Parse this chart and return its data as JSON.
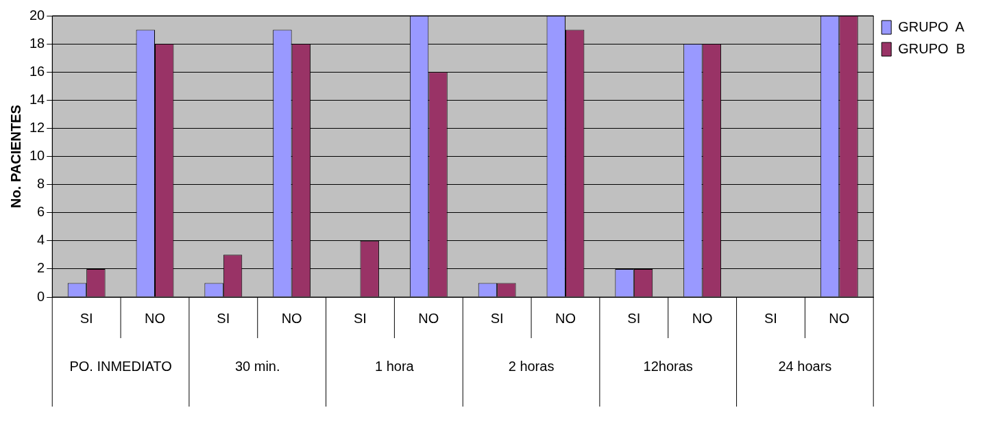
{
  "chart_data": {
    "type": "bar",
    "ylabel": "No. PACIENTES",
    "categories": [
      "SI",
      "NO",
      "SI",
      "NO",
      "SI",
      "NO",
      "SI",
      "NO",
      "SI",
      "NO",
      "SI",
      "NO"
    ],
    "series": [
      {
        "name": "GRUPO  A",
        "color": "#9999ff",
        "values": [
          1,
          19,
          1,
          19,
          0,
          20,
          1,
          20,
          2,
          18,
          0,
          20
        ]
      },
      {
        "name": "GRUPO  B",
        "color": "#993366",
        "values": [
          2,
          18,
          3,
          18,
          4,
          16,
          1,
          19,
          2,
          18,
          0,
          20
        ]
      }
    ],
    "annotations": [
      "PO. INMEDIATO",
      "30 min.",
      "1 hora",
      "2 horas",
      "12horas",
      "24 hoars"
    ],
    "ylim": [
      0,
      20
    ],
    "yticks": [
      0,
      2,
      4,
      6,
      8,
      10,
      12,
      14,
      16,
      18,
      20
    ],
    "grid": "y",
    "legend": "top right"
  }
}
